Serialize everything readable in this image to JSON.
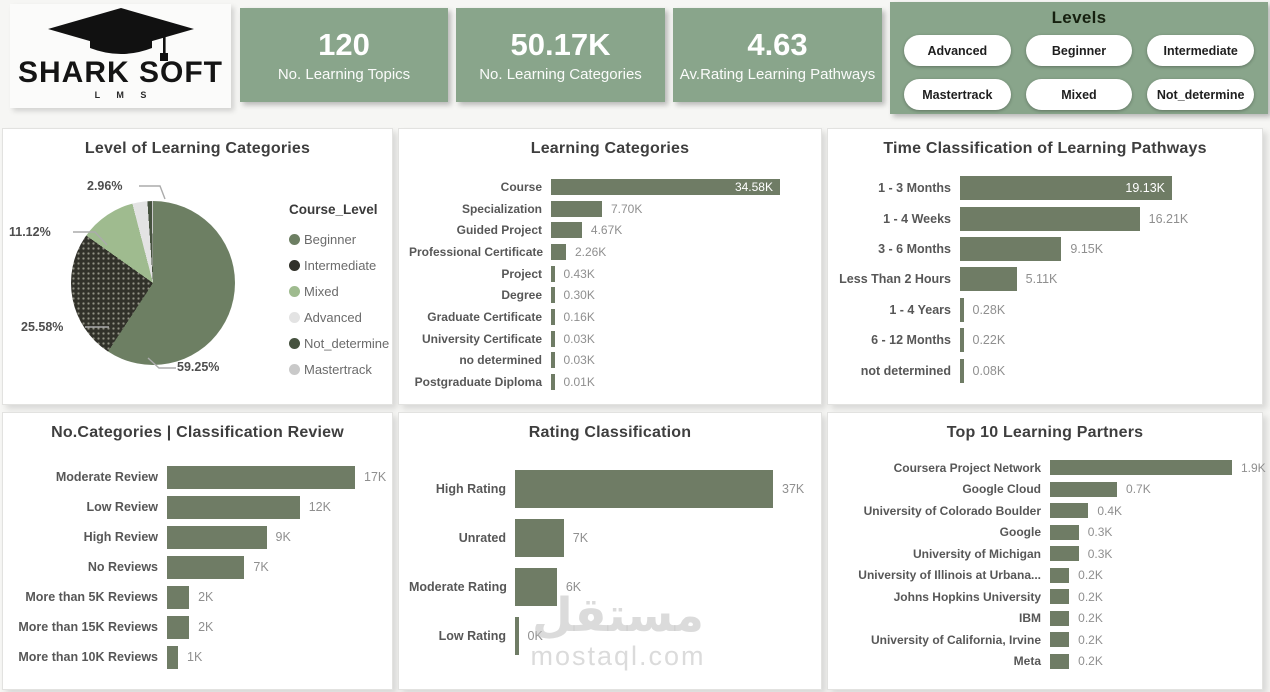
{
  "brand": {
    "name": "SHARK SOFT",
    "sub": "L M S"
  },
  "kpis": [
    {
      "value": "120",
      "label": "No. Learning Topics"
    },
    {
      "value": "50.17K",
      "label": "No. Learning Categories"
    },
    {
      "value": "4.63",
      "label": "Av.Rating Learning Pathways"
    }
  ],
  "levels": {
    "title": "Levels",
    "buttons": [
      "Advanced",
      "Beginner",
      "Intermediate",
      "Mastertrack",
      "Mixed",
      "Not_determine"
    ]
  },
  "watermark": {
    "arabic": "مستقل",
    "latin": "mostaql.com"
  },
  "colors": {
    "accent_green": "#89a58b",
    "bar_green": "#6f7c65"
  },
  "chart_data": [
    {
      "type": "pie",
      "title": "Level of Learning Categories",
      "legend_title": "Course_Level",
      "legend_position": "right",
      "slices": [
        {
          "label": "Beginner",
          "pct": 59.25,
          "color": "#6d7f63",
          "callout": "59.25%",
          "dotted": false
        },
        {
          "label": "Intermediate",
          "pct": 25.58,
          "color": "#31312a",
          "callout": "25.58%",
          "dotted": true
        },
        {
          "label": "Mixed",
          "pct": 11.12,
          "color": "#9fbb8f",
          "callout": "11.12%",
          "dotted": false
        },
        {
          "label": "Advanced",
          "pct": 2.96,
          "color": "#e3e3e3",
          "callout": "2.96%",
          "dotted": false
        },
        {
          "label": "Not_determine",
          "pct": 0.85,
          "color": "#46523f",
          "callout": null,
          "dotted": false
        },
        {
          "label": "Mastertrack",
          "pct": 0.24,
          "color": "#c9c9c9",
          "callout": null,
          "dotted": false
        }
      ]
    },
    {
      "type": "bar",
      "title": "Learning Categories",
      "unit": "K",
      "bars": [
        {
          "label": "Course",
          "value": 34.58,
          "display": "34.58K",
          "inside": true
        },
        {
          "label": "Specialization",
          "value": 7.7,
          "display": "7.70K",
          "inside": false
        },
        {
          "label": "Guided Project",
          "value": 4.67,
          "display": "4.67K",
          "inside": false
        },
        {
          "label": "Professional Certificate",
          "value": 2.26,
          "display": "2.26K",
          "inside": false
        },
        {
          "label": "Project",
          "value": 0.43,
          "display": "0.43K",
          "inside": false
        },
        {
          "label": "Degree",
          "value": 0.3,
          "display": "0.30K",
          "inside": false
        },
        {
          "label": "Graduate Certificate",
          "value": 0.16,
          "display": "0.16K",
          "inside": false
        },
        {
          "label": "University Certificate",
          "value": 0.03,
          "display": "0.03K",
          "inside": false
        },
        {
          "label": "no determined",
          "value": 0.03,
          "display": "0.03K",
          "inside": false
        },
        {
          "label": "Postgraduate Diploma",
          "value": 0.01,
          "display": "0.01K",
          "inside": false
        }
      ]
    },
    {
      "type": "bar",
      "title": "Time Classification of Learning Pathways",
      "unit": "K",
      "bars": [
        {
          "label": "1 - 3 Months",
          "value": 19.13,
          "display": "19.13K",
          "inside": true
        },
        {
          "label": "1 - 4 Weeks",
          "value": 16.21,
          "display": "16.21K",
          "inside": false
        },
        {
          "label": "3 - 6 Months",
          "value": 9.15,
          "display": "9.15K",
          "inside": false
        },
        {
          "label": "Less Than 2 Hours",
          "value": 5.11,
          "display": "5.11K",
          "inside": false
        },
        {
          "label": "1 - 4 Years",
          "value": 0.28,
          "display": "0.28K",
          "inside": false
        },
        {
          "label": "6 - 12 Months",
          "value": 0.22,
          "display": "0.22K",
          "inside": false
        },
        {
          "label": "not determined",
          "value": 0.08,
          "display": "0.08K",
          "inside": false
        }
      ]
    },
    {
      "type": "bar",
      "title": "No.Categories | Classification Review",
      "unit": "K",
      "bars": [
        {
          "label": "Moderate Review",
          "value": 17,
          "display": "17K",
          "inside": false
        },
        {
          "label": "Low Review",
          "value": 12,
          "display": "12K",
          "inside": false
        },
        {
          "label": "High Review",
          "value": 9,
          "display": "9K",
          "inside": false
        },
        {
          "label": "No Reviews",
          "value": 7,
          "display": "7K",
          "inside": false
        },
        {
          "label": "More than 5K Reviews",
          "value": 2,
          "display": "2K",
          "inside": false
        },
        {
          "label": "More than 15K Reviews",
          "value": 2,
          "display": "2K",
          "inside": false
        },
        {
          "label": "More than 10K Reviews",
          "value": 1,
          "display": "1K",
          "inside": false
        }
      ]
    },
    {
      "type": "bar",
      "title": "Rating Classification",
      "unit": "K",
      "bars": [
        {
          "label": "High Rating",
          "value": 37,
          "display": "37K",
          "inside": false
        },
        {
          "label": "Unrated",
          "value": 7,
          "display": "7K",
          "inside": false
        },
        {
          "label": "Moderate Rating",
          "value": 6,
          "display": "6K",
          "inside": false
        },
        {
          "label": "Low Rating",
          "value": 0,
          "display": "0K",
          "inside": false
        }
      ]
    },
    {
      "type": "bar",
      "title": "Top 10 Learning Partners",
      "unit": "K",
      "bars": [
        {
          "label": "Coursera Project Network",
          "value": 1.9,
          "display": "1.9K",
          "inside": false
        },
        {
          "label": "Google Cloud",
          "value": 0.7,
          "display": "0.7K",
          "inside": false
        },
        {
          "label": "University of Colorado Boulder",
          "value": 0.4,
          "display": "0.4K",
          "inside": false
        },
        {
          "label": "Google",
          "value": 0.3,
          "display": "0.3K",
          "inside": false
        },
        {
          "label": "University of Michigan",
          "value": 0.3,
          "display": "0.3K",
          "inside": false
        },
        {
          "label": "University of Illinois at Urbana...",
          "value": 0.2,
          "display": "0.2K",
          "inside": false
        },
        {
          "label": "Johns Hopkins University",
          "value": 0.2,
          "display": "0.2K",
          "inside": false
        },
        {
          "label": "IBM",
          "value": 0.2,
          "display": "0.2K",
          "inside": false
        },
        {
          "label": "University of California, Irvine",
          "value": 0.2,
          "display": "0.2K",
          "inside": false
        },
        {
          "label": "Meta",
          "value": 0.2,
          "display": "0.2K",
          "inside": false
        }
      ]
    }
  ]
}
